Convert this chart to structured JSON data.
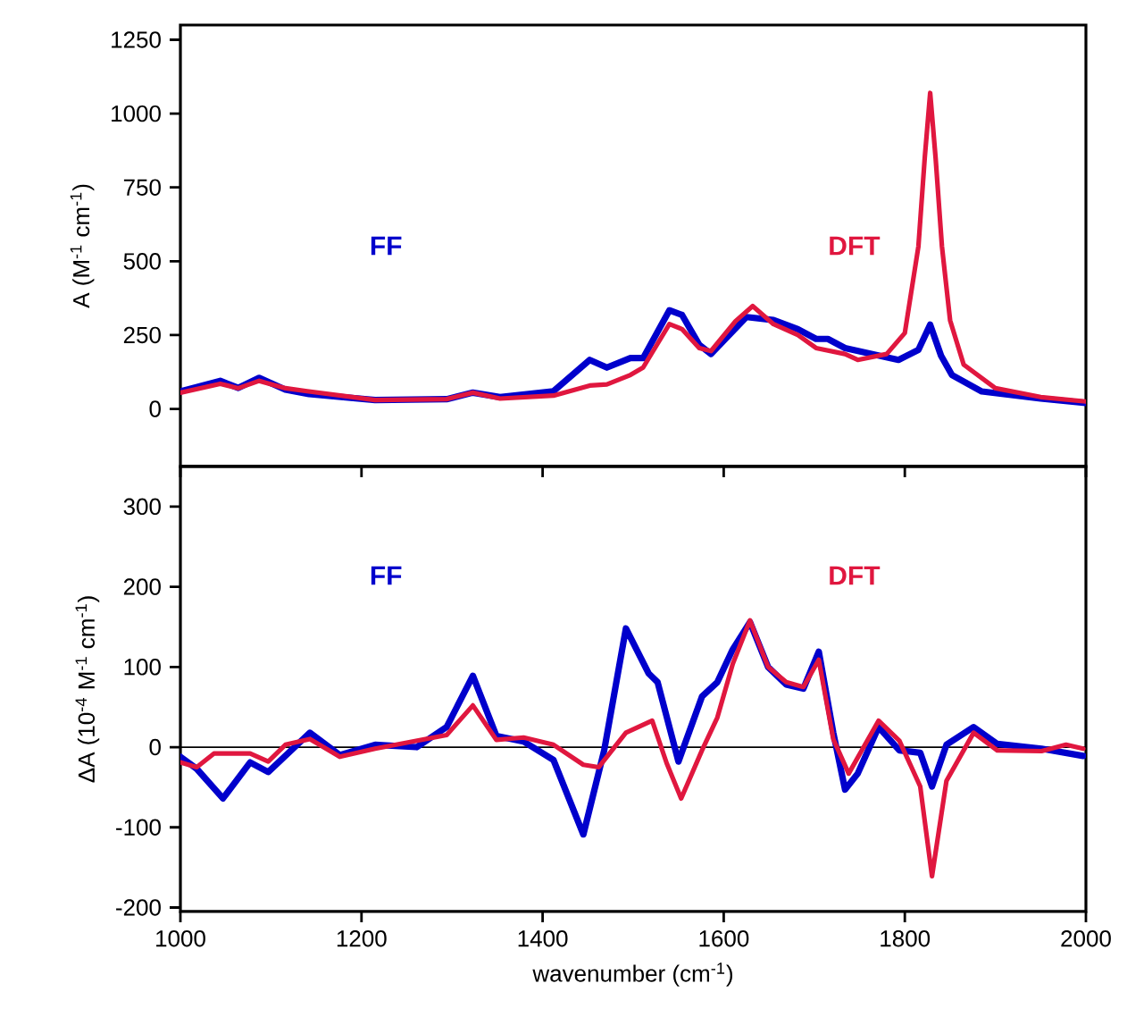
{
  "chart_data": [
    {
      "type": "line",
      "ylabel": "A (M$^{-1}$ cm$^{-1}$)",
      "xlim": [
        1000,
        2000
      ],
      "ylim": [
        -195,
        1300
      ],
      "xticks": [
        1000,
        1200,
        1400,
        1600,
        1800,
        2000
      ],
      "yticks": [
        0,
        250,
        500,
        750,
        1000,
        1250
      ],
      "tick_labels": "y",
      "series": [
        {
          "name": "FF",
          "color": "#0000cc",
          "x": [
            1000,
            1044,
            1064,
            1087,
            1116,
            1142,
            1215,
            1294,
            1323,
            1353,
            1412,
            1452,
            1471,
            1497,
            1511,
            1540,
            1554,
            1573,
            1586,
            1625,
            1655,
            1682,
            1702,
            1715,
            1734,
            1793,
            1815,
            1828,
            1840,
            1852,
            1885,
            1950,
            2000
          ],
          "values": [
            59,
            95,
            71,
            105,
            65,
            50,
            30,
            33,
            55,
            40,
            60,
            166,
            140,
            172,
            172,
            334,
            318,
            217,
            186,
            311,
            301,
            270,
            237,
            237,
            206,
            166,
            200,
            285,
            180,
            115,
            59,
            35,
            20
          ]
        },
        {
          "name": "DFT",
          "color": "#e0173f",
          "x": [
            1000,
            1044,
            1064,
            1087,
            1116,
            1140,
            1215,
            1294,
            1323,
            1353,
            1412,
            1452,
            1471,
            1497,
            1511,
            1540,
            1554,
            1573,
            1586,
            1613,
            1632,
            1655,
            1682,
            1702,
            1734,
            1748,
            1780,
            1800,
            1815,
            1822,
            1828,
            1834,
            1841,
            1850,
            1865,
            1900,
            1950,
            2000
          ],
          "values": [
            55,
            85,
            70,
            95,
            70,
            60,
            30,
            33,
            55,
            35,
            45,
            79,
            83,
            115,
            140,
            287,
            270,
            206,
            196,
            297,
            348,
            287,
            250,
            206,
            186,
            166,
            186,
            257,
            550,
            850,
            1070,
            850,
            550,
            300,
            150,
            70,
            40,
            25
          ]
        }
      ]
    },
    {
      "type": "line",
      "ylabel": "ΔA (10$^{-4}$ M$^{-1}$ cm$^{-1}$)",
      "xlabel": "wavenumber (cm$^{-1}$)",
      "xlim": [
        1000,
        2000
      ],
      "ylim": [
        -205,
        350
      ],
      "xticks": [
        1000,
        1200,
        1400,
        1600,
        1800,
        2000
      ],
      "yticks": [
        -200,
        -100,
        0,
        100,
        200,
        300
      ],
      "ref_lines": [
        {
          "axis": "y",
          "value": 0,
          "color": "#000000"
        }
      ],
      "series": [
        {
          "name": "FF",
          "color": "#0000cc",
          "x": [
            1000,
            1018,
            1047,
            1077,
            1097,
            1143,
            1176,
            1215,
            1261,
            1294,
            1323,
            1349,
            1379,
            1412,
            1445,
            1468,
            1492,
            1517,
            1527,
            1550,
            1576,
            1593,
            1610,
            1629,
            1649,
            1669,
            1688,
            1705,
            1721,
            1734,
            1748,
            1771,
            1794,
            1817,
            1830,
            1846,
            1876,
            1902,
            1951,
            1997
          ],
          "values": [
            -12,
            -27,
            -64,
            -19,
            -31,
            18,
            -10,
            3,
            0,
            25,
            89,
            14,
            7,
            -16,
            -109,
            -4,
            148,
            92,
            81,
            -18,
            63,
            81,
            122,
            156,
            100,
            78,
            73,
            119,
            18,
            -53,
            -33,
            25,
            -4,
            -7,
            -49,
            3,
            25,
            4,
            -2,
            -11
          ]
        },
        {
          "name": "DFT",
          "color": "#e0173f",
          "x": [
            1000,
            1018,
            1037,
            1077,
            1097,
            1116,
            1143,
            1176,
            1215,
            1294,
            1323,
            1349,
            1379,
            1412,
            1445,
            1462,
            1492,
            1521,
            1537,
            1553,
            1576,
            1593,
            1610,
            1629,
            1649,
            1669,
            1688,
            1705,
            1721,
            1738,
            1771,
            1794,
            1817,
            1830,
            1846,
            1876,
            1902,
            1951,
            1978,
            1997
          ],
          "values": [
            -19,
            -25,
            -8,
            -8,
            -18,
            3,
            10,
            -12,
            -2,
            15,
            52,
            9,
            12,
            3,
            -22,
            -25,
            18,
            33,
            -20,
            -64,
            -4,
            37,
            104,
            158,
            100,
            81,
            75,
            109,
            10,
            -33,
            33,
            8,
            -49,
            -161,
            -42,
            18,
            -4,
            -5,
            3,
            -2
          ]
        }
      ]
    }
  ]
}
